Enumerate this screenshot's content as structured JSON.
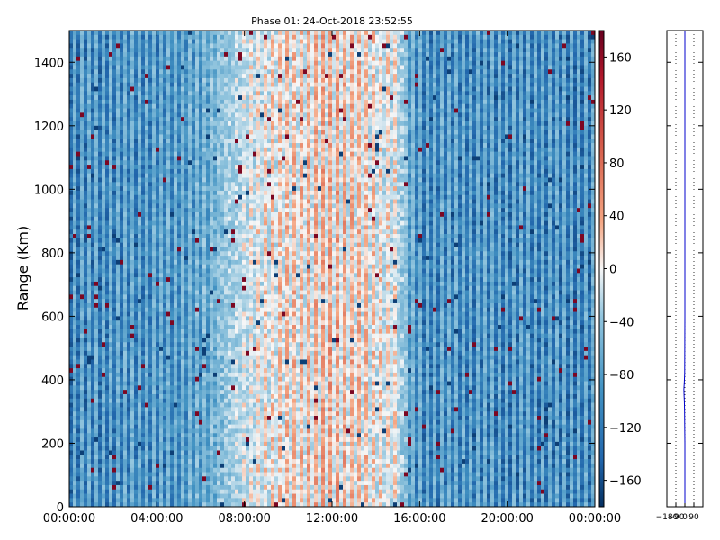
{
  "chart_data": [
    {
      "type": "heatmap",
      "title": "Phase 01: 24-Oct-2018 23:52:55",
      "ylabel": "Range (Km)",
      "xlabel": "",
      "x_range": [
        "00:00:00",
        "24:00:00"
      ],
      "x_tick_labels": [
        "00:00:00",
        "04:00:00",
        "08:00:00",
        "12:00:00",
        "16:00:00",
        "20:00:00",
        "00:00:00"
      ],
      "ylim": [
        0,
        1500
      ],
      "y_ticks": [
        0,
        200,
        400,
        600,
        800,
        1000,
        1200,
        1400
      ],
      "colorbar": {
        "vmin": -180,
        "vmax": 180,
        "ticks": [
          -160,
          -120,
          -80,
          -40,
          0,
          40,
          80,
          120,
          160
        ],
        "tick_labels": [
          "−160",
          "−120",
          "−80",
          "−40",
          "0",
          "40",
          "80",
          "120",
          "160"
        ],
        "colormap": "RdBu_r"
      },
      "phase_profile": {
        "x_hours": [
          0,
          2,
          4,
          6,
          7,
          8,
          9,
          10,
          11,
          12,
          13,
          14,
          15,
          15.5,
          16,
          18,
          20,
          22,
          24
        ],
        "mean_phase_deg": [
          -110,
          -100,
          -95,
          -70,
          -20,
          20,
          40,
          55,
          60,
          70,
          60,
          45,
          30,
          -60,
          -100,
          -100,
          -105,
          -105,
          -110
        ]
      }
    },
    {
      "type": "line",
      "title": "",
      "xlabel": "",
      "ylabel": "",
      "xlim": [
        -180,
        180
      ],
      "x_tick_labels": [
        "−180",
        "−90",
        "0",
        "90"
      ],
      "ylim": [
        0,
        1500
      ],
      "series": [
        {
          "color": "#0000cc",
          "x": [
            0,
            0,
            0,
            -3,
            -5,
            -8,
            -10,
            -6,
            -2,
            -1,
            0,
            0,
            0,
            0,
            0,
            0
          ],
          "y": [
            0,
            100,
            200,
            300,
            330,
            350,
            370,
            390,
            420,
            500,
            600,
            800,
            1000,
            1200,
            1400,
            1500
          ]
        }
      ]
    }
  ]
}
